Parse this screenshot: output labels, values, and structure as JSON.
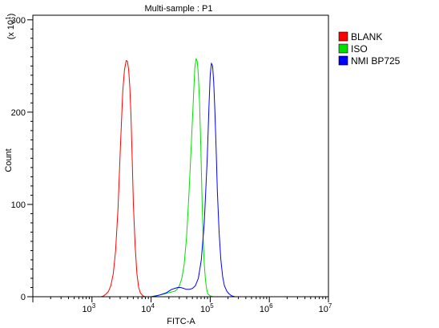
{
  "chart_data": {
    "type": "line",
    "title": "Multi-sample : P1",
    "xlabel": "FITC-A",
    "ylabel": "Count",
    "y_multiplier": "(x 10",
    "y_multiplier_exp": "1",
    "y_multiplier_close": ")",
    "xscale": "log",
    "xlim": [
      100,
      10000000
    ],
    "ylim": [
      0,
      305
    ],
    "x_ticks": [
      {
        "value": 1000,
        "base": "10",
        "exp": "3"
      },
      {
        "value": 10000,
        "base": "10",
        "exp": "4"
      },
      {
        "value": 100000,
        "base": "10",
        "exp": "5"
      },
      {
        "value": 1000000,
        "base": "10",
        "exp": "6"
      },
      {
        "value": 10000000,
        "base": "10",
        "exp": "7"
      }
    ],
    "y_ticks": [
      0,
      100,
      200,
      300
    ],
    "legend_position": "right",
    "series": [
      {
        "name": "BLANK",
        "color": "#ff0000",
        "x": [
          1445,
          1585,
          1738,
          1905,
          2089,
          2291,
          2512,
          2754,
          3020,
          3311,
          3548,
          3802,
          3981,
          4169,
          4365,
          4571,
          4786,
          5012,
          5370,
          5754,
          6166,
          6607,
          7244,
          7943
        ],
        "y": [
          0,
          1,
          3,
          6,
          12,
          25,
          50,
          95,
          160,
          222,
          246,
          256,
          255,
          246,
          228,
          196,
          150,
          100,
          55,
          25,
          10,
          4,
          1,
          0
        ]
      },
      {
        "name": "ISO",
        "color": "#00e000",
        "x": [
          10000,
          12023,
          14454,
          16596,
          19055,
          21878,
          25119,
          27542,
          30200,
          33113,
          36308,
          39811,
          43652,
          47863,
          52481,
          55000,
          57544,
          60256,
          63096,
          66069,
          69183,
          72444,
          75858,
          79433,
          83176,
          87096,
          91201,
          100000,
          109648,
          125893
        ],
        "y": [
          0,
          1,
          2,
          3,
          4,
          5,
          6,
          8,
          12,
          20,
          35,
          65,
          110,
          165,
          220,
          248,
          258,
          255,
          240,
          210,
          165,
          110,
          65,
          35,
          18,
          8,
          3,
          1,
          0,
          0
        ]
      },
      {
        "name": "NMI BP725",
        "color": "#0000ff",
        "x": [
          10000,
          12589,
          14125,
          15849,
          17783,
          19953,
          22387,
          25119,
          28184,
          31623,
          35481,
          39811,
          44668,
          50119,
          56234,
          63096,
          70795,
          79433,
          89125,
          95000,
          100000,
          104713,
          109648,
          114815,
          120226,
          125893,
          131826,
          141254,
          151356,
          162181,
          173780,
          190546,
          208930,
          229087,
          263027,
          301995
        ],
        "y": [
          0,
          1,
          2,
          3,
          4,
          6,
          8,
          9,
          10,
          10,
          9,
          8,
          8,
          9,
          12,
          20,
          40,
          80,
          150,
          205,
          240,
          253,
          250,
          232,
          200,
          160,
          115,
          70,
          40,
          22,
          12,
          6,
          3,
          1,
          0,
          0
        ]
      }
    ]
  }
}
